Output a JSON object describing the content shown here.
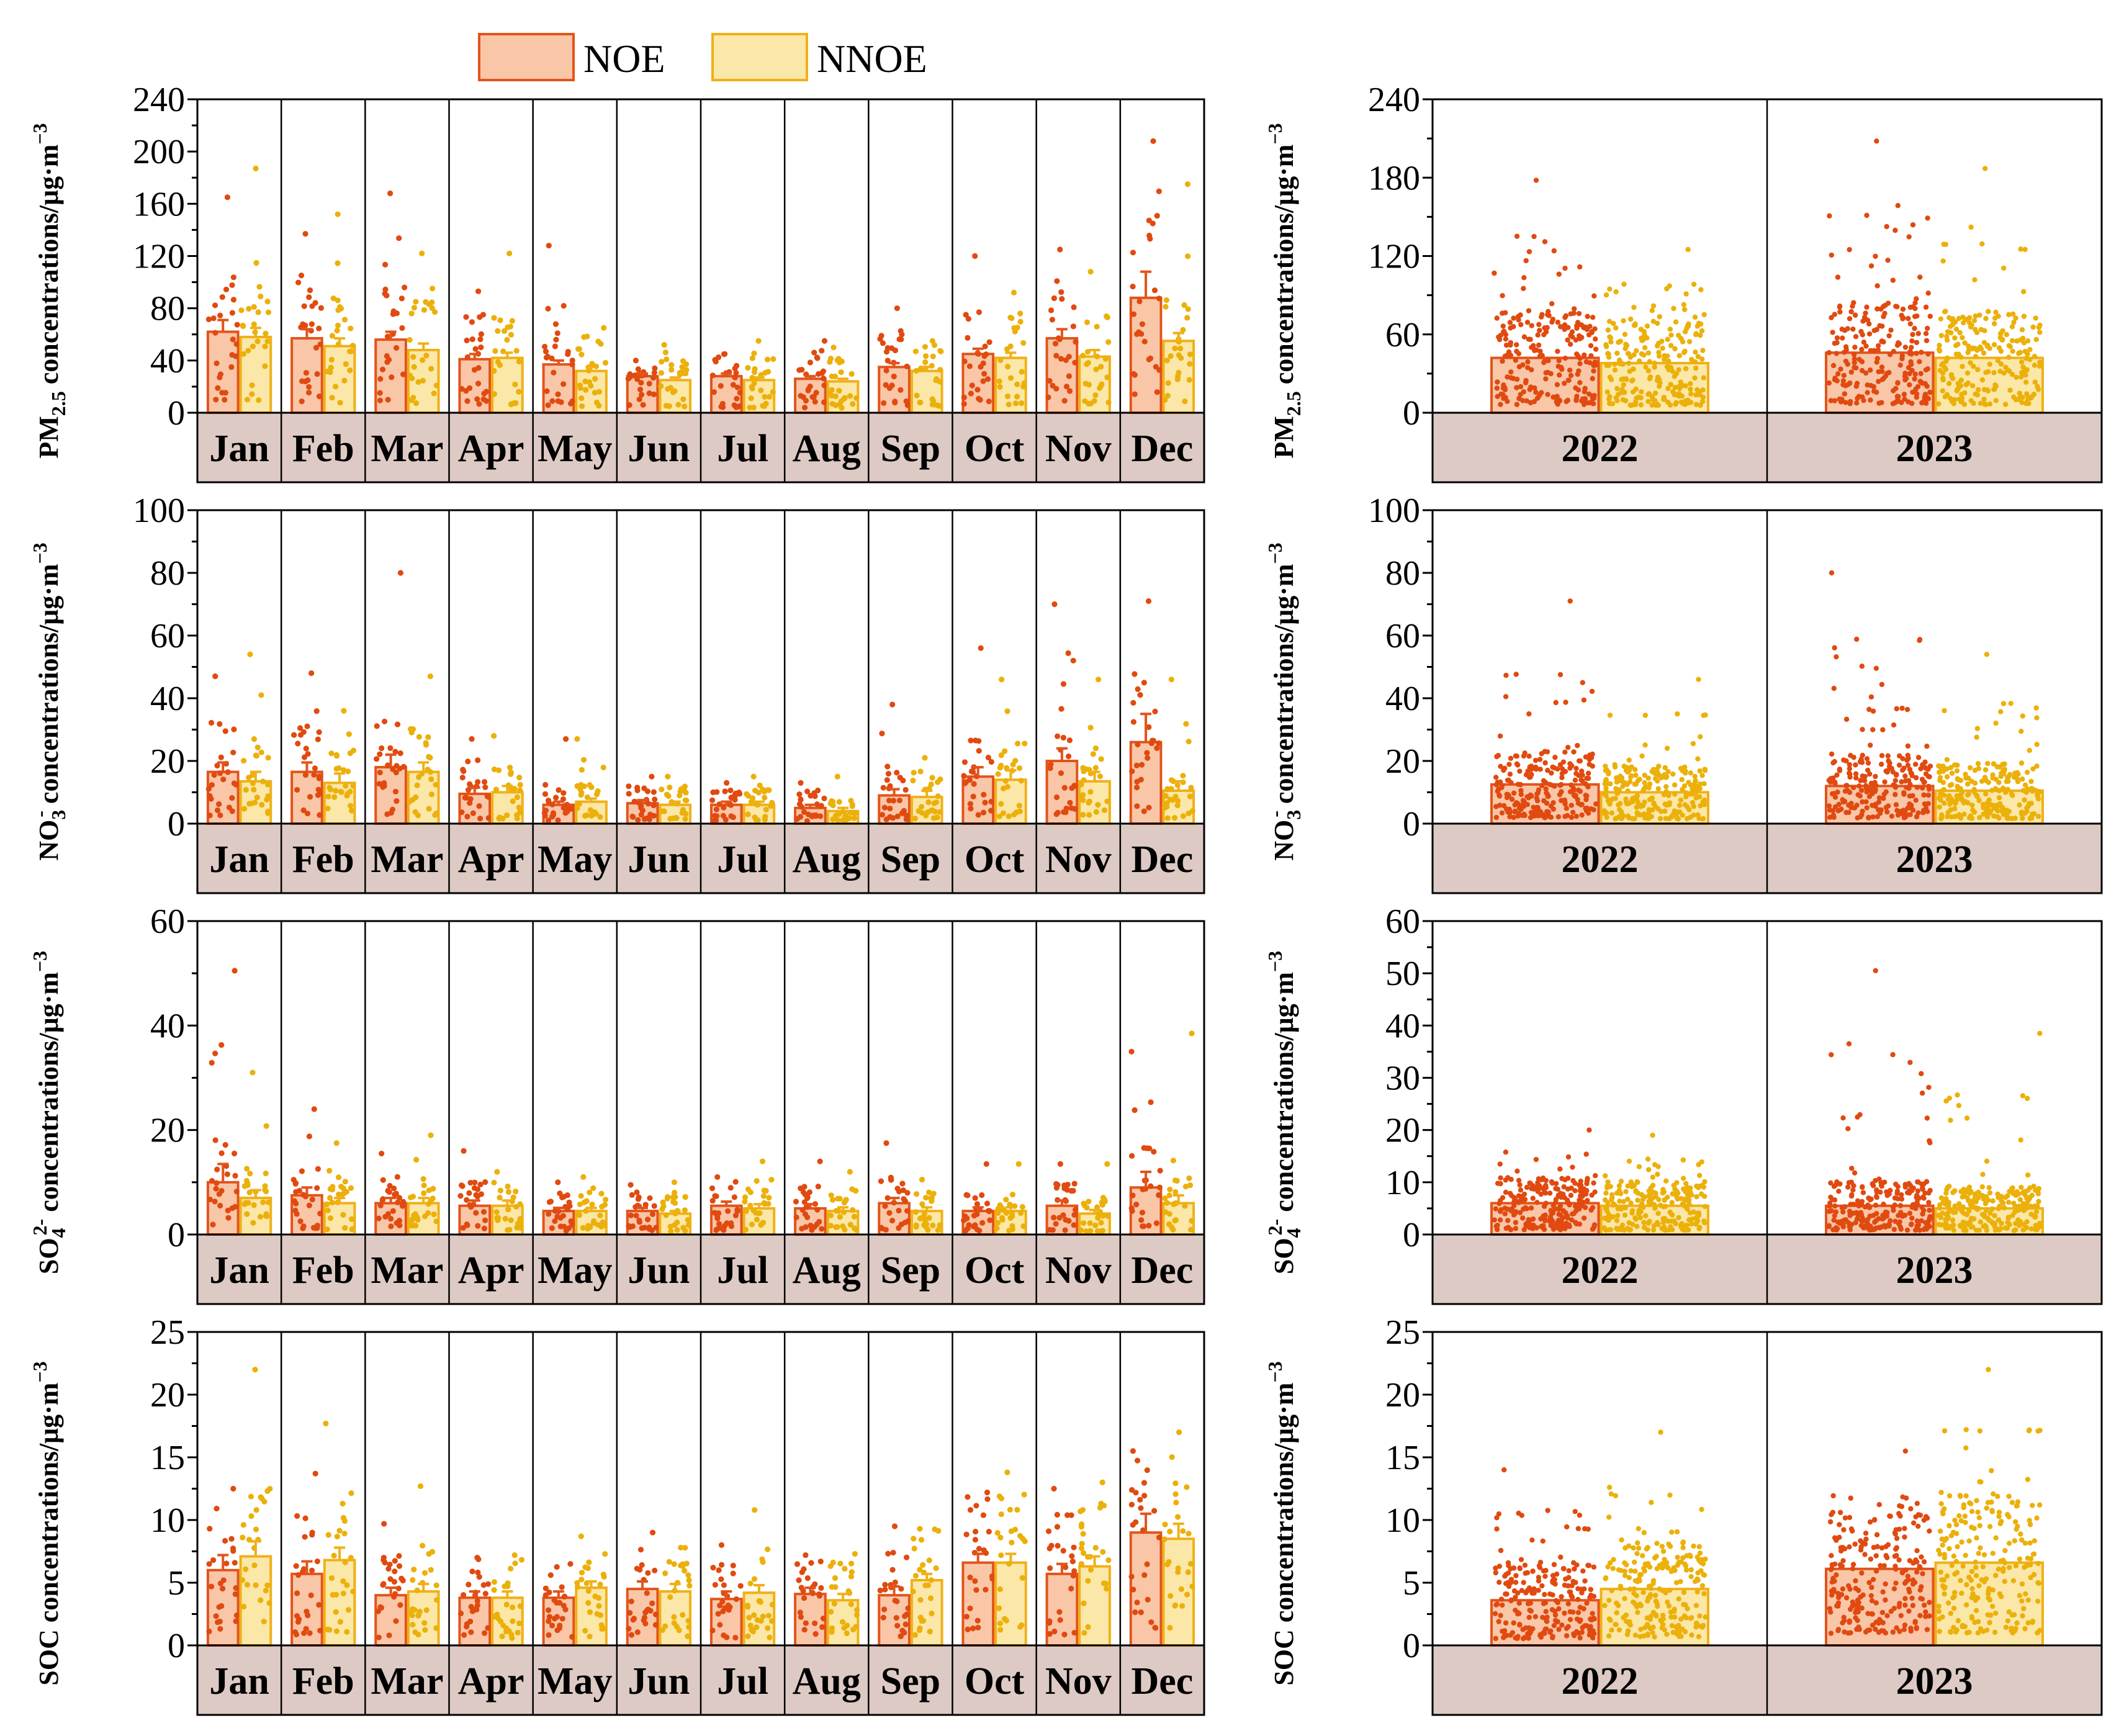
{
  "legend": {
    "noe_label": "NOE",
    "nnoe_label": "NNOE"
  },
  "colors": {
    "noe_fill": "#f9c6a8",
    "noe_edge": "#e2541b",
    "noe_point": "#e04a10",
    "nnoe_fill": "#fbe7a8",
    "nnoe_edge": "#f0b017",
    "nnoe_point": "#ebb00a",
    "strip_bg": "#ddcac4"
  },
  "chart_data": [
    {
      "id": "pm25-monthly",
      "type": "bar",
      "ylabel_main": "PM",
      "ylabel_sub": "2.5",
      "ylabel_sup": "",
      "ylabel_rest": " concentrations/μg·m",
      "ylabel_unit_sup": "−3",
      "ylim": [
        0,
        240
      ],
      "yticks": [
        0,
        40,
        80,
        120,
        160,
        200,
        240
      ],
      "categories": [
        "Jan",
        "Feb",
        "Mar",
        "Apr",
        "May",
        "Jun",
        "Jul",
        "Aug",
        "Sep",
        "Oct",
        "Nov",
        "Dec"
      ],
      "series": [
        {
          "name": "NOE",
          "values": [
            62,
            57,
            56,
            41,
            37,
            28,
            28,
            26,
            35,
            45,
            57,
            88
          ],
          "err": [
            9,
            7,
            6,
            4,
            3,
            2,
            2,
            2,
            3,
            4,
            7,
            20
          ],
          "max": [
            165,
            137,
            168,
            93,
            128,
            40,
            45,
            55,
            80,
            120,
            125,
            208
          ]
        },
        {
          "name": "NNOE",
          "values": [
            58,
            51,
            48,
            42,
            32,
            25,
            25,
            24,
            32,
            42,
            43,
            55
          ],
          "err": [
            7,
            6,
            5,
            4,
            3,
            2,
            2,
            2,
            3,
            4,
            5,
            6
          ],
          "max": [
            187,
            152,
            122,
            122,
            65,
            52,
            55,
            50,
            55,
            92,
            108,
            175
          ]
        }
      ]
    },
    {
      "id": "pm25-yearly",
      "type": "bar",
      "ylabel_main": "PM",
      "ylabel_sub": "2.5",
      "ylabel_sup": "",
      "ylabel_rest": " concentrations/μg·m",
      "ylabel_unit_sup": "−3",
      "ylim": [
        0,
        240
      ],
      "yticks": [
        0,
        60,
        120,
        180,
        240
      ],
      "categories": [
        "2022",
        "2023"
      ],
      "series": [
        {
          "name": "NOE",
          "values": [
            42,
            46
          ],
          "max": [
            178,
            208
          ]
        },
        {
          "name": "NNOE",
          "values": [
            38,
            42
          ],
          "max": [
            125,
            187
          ]
        }
      ]
    },
    {
      "id": "no3-monthly",
      "type": "bar",
      "ylabel_main": "NO",
      "ylabel_sub": "3",
      "ylabel_sup": "-",
      "ylabel_rest": " concentrations/μg·m",
      "ylabel_unit_sup": "−3",
      "ylim": [
        0,
        100
      ],
      "yticks": [
        0,
        20,
        40,
        60,
        80,
        100
      ],
      "categories": [
        "Jan",
        "Feb",
        "Mar",
        "Apr",
        "May",
        "Jun",
        "Jul",
        "Aug",
        "Sep",
        "Oct",
        "Nov",
        "Dec"
      ],
      "series": [
        {
          "name": "NOE",
          "values": [
            16.5,
            16.5,
            18,
            9.5,
            6,
            6.5,
            6,
            5,
            9,
            15,
            20,
            26
          ],
          "err": [
            3,
            3,
            4,
            2,
            1,
            1,
            1,
            1,
            2,
            3,
            4,
            9
          ],
          "max": [
            47,
            48,
            80,
            27,
            27,
            15,
            13,
            13,
            38,
            56,
            70,
            71
          ]
        },
        {
          "name": "NNOE",
          "values": [
            13.5,
            13,
            16.5,
            10,
            7,
            6,
            6,
            4,
            8.5,
            14,
            13.5,
            10.5
          ],
          "err": [
            3,
            3,
            3,
            2,
            1,
            1,
            1,
            1,
            2,
            3,
            3,
            3
          ],
          "max": [
            54,
            36,
            47,
            28,
            27,
            15,
            15,
            15,
            21,
            46,
            46,
            46
          ]
        }
      ]
    },
    {
      "id": "no3-yearly",
      "type": "bar",
      "ylabel_main": "NO",
      "ylabel_sub": "3",
      "ylabel_sup": "-",
      "ylabel_rest": " concentrations/μg·m",
      "ylabel_unit_sup": "−3",
      "ylim": [
        0,
        100
      ],
      "yticks": [
        0,
        20,
        40,
        60,
        80,
        100
      ],
      "categories": [
        "2022",
        "2023"
      ],
      "series": [
        {
          "name": "NOE",
          "values": [
            12.5,
            12
          ],
          "max": [
            71,
            80
          ]
        },
        {
          "name": "NNOE",
          "values": [
            10,
            10.5
          ],
          "max": [
            46,
            54
          ]
        }
      ]
    },
    {
      "id": "so4-monthly",
      "type": "bar",
      "ylabel_main": "SO",
      "ylabel_sub": "4",
      "ylabel_sup": "2-",
      "ylabel_rest": " concentrations/μg·m",
      "ylabel_unit_sup": "−3",
      "ylim": [
        0,
        60
      ],
      "yticks": [
        0,
        20,
        40,
        60
      ],
      "categories": [
        "Jan",
        "Feb",
        "Mar",
        "Apr",
        "May",
        "Jun",
        "Jul",
        "Aug",
        "Sep",
        "Oct",
        "Nov",
        "Dec"
      ],
      "series": [
        {
          "name": "NOE",
          "values": [
            10,
            7.5,
            6,
            5.5,
            4.5,
            4.5,
            5.5,
            5,
            6,
            4.5,
            5.5,
            9
          ],
          "err": [
            3.5,
            1.5,
            1,
            1,
            0.6,
            0.6,
            0.8,
            0.8,
            1,
            0.7,
            1,
            3
          ],
          "max": [
            50.5,
            24,
            15.5,
            16,
            10,
            9.5,
            11,
            14,
            17.5,
            13.5,
            13.5,
            35
          ]
        },
        {
          "name": "NNOE",
          "values": [
            7,
            6,
            6,
            5.5,
            4.5,
            4,
            5,
            4.5,
            4.5,
            4.5,
            4,
            6
          ],
          "err": [
            1.5,
            1,
            1,
            1,
            0.6,
            0.5,
            0.8,
            0.7,
            0.7,
            0.7,
            0.7,
            1.5
          ],
          "max": [
            31,
            17.5,
            19,
            12,
            11,
            10,
            14,
            12,
            10.5,
            13.5,
            13.5,
            38.5
          ]
        }
      ]
    },
    {
      "id": "so4-yearly",
      "type": "bar",
      "ylabel_main": "SO",
      "ylabel_sub": "4",
      "ylabel_sup": "2-",
      "ylabel_rest": " concentrations/μg·m",
      "ylabel_unit_sup": "−3",
      "ylim": [
        0,
        60
      ],
      "yticks": [
        0,
        10,
        20,
        30,
        40,
        50,
        60
      ],
      "categories": [
        "2022",
        "2023"
      ],
      "series": [
        {
          "name": "NOE",
          "values": [
            6,
            5.5
          ],
          "max": [
            20,
            50.5
          ]
        },
        {
          "name": "NNOE",
          "values": [
            5.5,
            5
          ],
          "max": [
            19,
            38.5
          ]
        }
      ]
    },
    {
      "id": "soc-monthly",
      "type": "bar",
      "ylabel_main": "SOC",
      "ylabel_sub": "",
      "ylabel_sup": "",
      "ylabel_rest": " concentrations/μg·m",
      "ylabel_unit_sup": "−3",
      "ylim": [
        0,
        25
      ],
      "yticks": [
        0,
        5,
        10,
        15,
        20,
        25
      ],
      "categories": [
        "Jan",
        "Feb",
        "Mar",
        "Apr",
        "May",
        "Jun",
        "Jul",
        "Aug",
        "Sep",
        "Oct",
        "Nov",
        "Dec"
      ],
      "series": [
        {
          "name": "NOE",
          "values": [
            6,
            5.7,
            4,
            3.8,
            3.8,
            4.5,
            3.7,
            4.1,
            4,
            6.6,
            5.7,
            9
          ],
          "err": [
            1.2,
            1,
            0.6,
            0.5,
            0.5,
            0.6,
            0.6,
            0.5,
            0.7,
            0.7,
            0.8,
            1.5
          ],
          "max": [
            12.5,
            13.7,
            9.7,
            7,
            6.5,
            9,
            8,
            7.2,
            9.5,
            12.2,
            12.5,
            15.5
          ]
        },
        {
          "name": "NNOE",
          "values": [
            7.1,
            6.8,
            4.3,
            3.8,
            4.6,
            4.3,
            4.2,
            3.6,
            5.2,
            6.6,
            6.3,
            8.5
          ],
          "err": [
            1.2,
            1,
            0.6,
            0.5,
            0.5,
            0.6,
            0.6,
            0.5,
            0.5,
            0.7,
            0.8,
            1.2
          ],
          "max": [
            22,
            17.7,
            12.7,
            7.2,
            8.7,
            7.8,
            10.8,
            7.3,
            9.3,
            13.8,
            13,
            17
          ]
        }
      ]
    },
    {
      "id": "soc-yearly",
      "type": "bar",
      "ylabel_main": "SOC",
      "ylabel_sub": "",
      "ylabel_sup": "",
      "ylabel_rest": " concentrations/μg·m",
      "ylabel_unit_sup": "−3",
      "ylim": [
        0,
        25
      ],
      "yticks": [
        0,
        5,
        10,
        15,
        20,
        25
      ],
      "categories": [
        "2022",
        "2023"
      ],
      "series": [
        {
          "name": "NOE",
          "values": [
            3.6,
            6.1
          ],
          "max": [
            14,
            15.5
          ]
        },
        {
          "name": "NNOE",
          "values": [
            4.5,
            6.6
          ],
          "max": [
            17,
            22
          ]
        }
      ]
    }
  ]
}
